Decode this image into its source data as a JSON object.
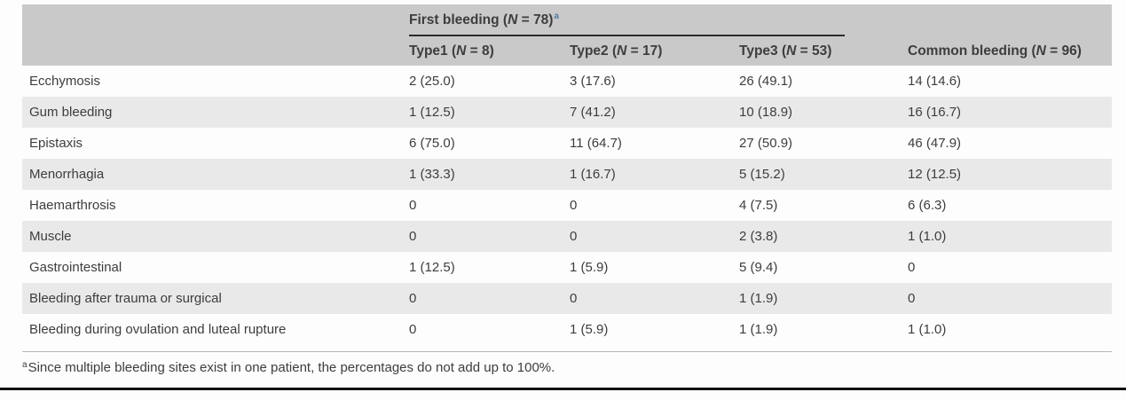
{
  "colors": {
    "header_bg": "#c9c9c9",
    "stripe_bg": "#e9e9e9",
    "text": "#3d3d3d",
    "group_underline": "#2b2b2b",
    "footnote_rule": "#b5b5b5",
    "bottom_rule": "#101010",
    "superscript_accent": "#56799e"
  },
  "table": {
    "group_header": {
      "pre": "First bleeding (",
      "n": "N",
      "post": " = 78)",
      "sup": "a"
    },
    "columns": [
      {
        "pre": "Type1 (",
        "n": "N",
        "post": " = 8)"
      },
      {
        "pre": "Type2 (",
        "n": "N",
        "post": " = 17)"
      },
      {
        "pre": "Type3 (",
        "n": "N",
        "post": " = 53)"
      },
      {
        "pre": "Common bleeding (",
        "n": "N",
        "post": " = 96)"
      }
    ],
    "rows": [
      {
        "label": "Ecchymosis",
        "values": [
          "2 (25.0)",
          "3 (17.6)",
          "26 (49.1)",
          "14 (14.6)"
        ]
      },
      {
        "label": "Gum bleeding",
        "values": [
          "1 (12.5)",
          "7 (41.2)",
          "10 (18.9)",
          "16 (16.7)"
        ]
      },
      {
        "label": "Epistaxis",
        "values": [
          "6 (75.0)",
          "11 (64.7)",
          "27 (50.9)",
          "46 (47.9)"
        ]
      },
      {
        "label": "Menorrhagia",
        "values": [
          "1 (33.3)",
          "1 (16.7)",
          "5 (15.2)",
          "12 (12.5)"
        ]
      },
      {
        "label": "Haemarthrosis",
        "values": [
          "0",
          "0",
          "4 (7.5)",
          "6 (6.3)"
        ]
      },
      {
        "label": "Muscle",
        "values": [
          "0",
          "0",
          "2 (3.8)",
          "1 (1.0)"
        ]
      },
      {
        "label": "Gastrointestinal",
        "values": [
          "1 (12.5)",
          "1 (5.9)",
          "5 (9.4)",
          "0"
        ]
      },
      {
        "label": "Bleeding after trauma or surgical",
        "values": [
          "0",
          "0",
          "1 (1.9)",
          "0"
        ]
      },
      {
        "label": "Bleeding during ovulation and luteal rupture",
        "values": [
          "0",
          "1 (5.9)",
          "1 (1.9)",
          "1 (1.0)"
        ]
      }
    ],
    "footnote": {
      "sup": "a",
      "text": "Since multiple bleeding sites exist in one patient, the percentages do not add up to 100%."
    }
  }
}
